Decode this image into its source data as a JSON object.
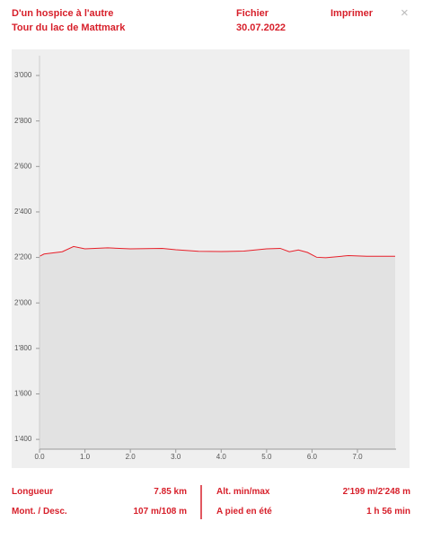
{
  "header": {
    "title": "D'un hospice à l'autre",
    "subtitle": "Tour du lac de Mattmark",
    "file": "Fichier",
    "date": "30.07.2022",
    "print": "Imprimer",
    "close": "×"
  },
  "stats": [
    {
      "label": "Longueur",
      "value": "7.85 km"
    },
    {
      "label": "Mont. / Desc.",
      "value": "107 m/108 m"
    },
    {
      "label": "Alt. min/max",
      "value": "2'199 m/2'248 m"
    },
    {
      "label": "A pied en été",
      "value": "1 h 56 min"
    }
  ],
  "chart_data": {
    "type": "area",
    "color": "#e8202a",
    "fill": "#e2e2e2",
    "x": [
      0,
      0.1,
      0.5,
      0.75,
      1.0,
      1.5,
      2.0,
      2.7,
      3.0,
      3.5,
      4.0,
      4.5,
      5.0,
      5.3,
      5.5,
      5.7,
      5.9,
      6.1,
      6.3,
      6.8,
      7.2,
      7.83
    ],
    "values": [
      2205,
      2215,
      2225,
      2248,
      2238,
      2242,
      2238,
      2240,
      2234,
      2227,
      2226,
      2228,
      2238,
      2240,
      2225,
      2233,
      2222,
      2201,
      2199,
      2208,
      2205,
      2205
    ],
    "xlim": [
      0,
      7.85
    ],
    "ylim": [
      1357,
      3087
    ],
    "xticks": [
      {
        "value": 0,
        "label": "0.0"
      },
      {
        "value": 1,
        "label": "1.0"
      },
      {
        "value": 2,
        "label": "2.0"
      },
      {
        "value": 3,
        "label": "3.0"
      },
      {
        "value": 4,
        "label": "4.0"
      },
      {
        "value": 5,
        "label": "5.0"
      },
      {
        "value": 6,
        "label": "6.0"
      },
      {
        "value": 7,
        "label": "7.0"
      }
    ],
    "yticks": [
      {
        "value": 1400,
        "label": "1'400"
      },
      {
        "value": 1600,
        "label": "1'600"
      },
      {
        "value": 1800,
        "label": "1'800"
      },
      {
        "value": 2000,
        "label": "2'000"
      },
      {
        "value": 2200,
        "label": "2'200"
      },
      {
        "value": 2400,
        "label": "2'400"
      },
      {
        "value": 2600,
        "label": "2'600"
      },
      {
        "value": 2800,
        "label": "2'800"
      },
      {
        "value": 3000,
        "label": "3'000"
      }
    ]
  }
}
